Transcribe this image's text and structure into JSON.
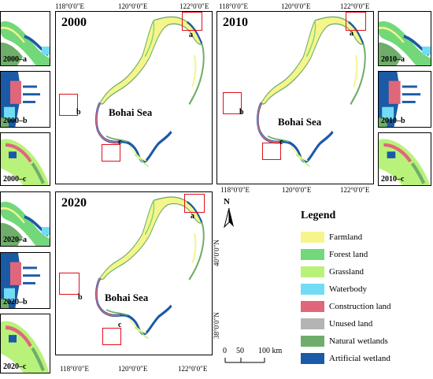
{
  "panels": {
    "p2000": {
      "year": "2000",
      "sea": "Bohai Sea",
      "label_a": "a",
      "label_b": "b",
      "label_c": "c"
    },
    "p2010": {
      "year": "2010",
      "sea": "Bohai Sea",
      "label_a": "a",
      "label_b": "b",
      "label_c": "c"
    },
    "p2020": {
      "year": "2020",
      "sea": "Bohai Sea",
      "label_a": "a",
      "label_b": "b",
      "label_c": "c"
    }
  },
  "thumbs": {
    "t2000a": "2000–a",
    "t2000b": "2000–b",
    "t2000c": "2000–c",
    "t2010a": "2010–a",
    "t2010b": "2010–b",
    "t2010c": "2010–c",
    "t2020a": "2020–a",
    "t2020b": "2020–b",
    "t2020c": "2020–c"
  },
  "axis": {
    "lon_118": "118°0′0″E",
    "lon_120": "120°0′0″E",
    "lon_122": "122°0′0″E",
    "lat_40": "40°0′0″N",
    "lat_38": "38°0′0″N"
  },
  "legend": {
    "title": "Legend",
    "items": [
      {
        "label": "Farmland",
        "color": "#f5f58c"
      },
      {
        "label": "Forest land",
        "color": "#73d87a"
      },
      {
        "label": "Grassland",
        "color": "#b9f27a"
      },
      {
        "label": "Waterbody",
        "color": "#73dcf5"
      },
      {
        "label": "Construction land",
        "color": "#e0677a"
      },
      {
        "label": "Unused land",
        "color": "#b4b4b4"
      },
      {
        "label": "Natural wetlands",
        "color": "#6fae6a"
      },
      {
        "label": "Artificial wetland",
        "color": "#1b5aa6"
      }
    ]
  },
  "north": {
    "label": "N"
  },
  "scale": {
    "t0": "0",
    "t50": "50",
    "t100": "100 km"
  },
  "colors": {
    "inset_box": "#e0101a"
  }
}
